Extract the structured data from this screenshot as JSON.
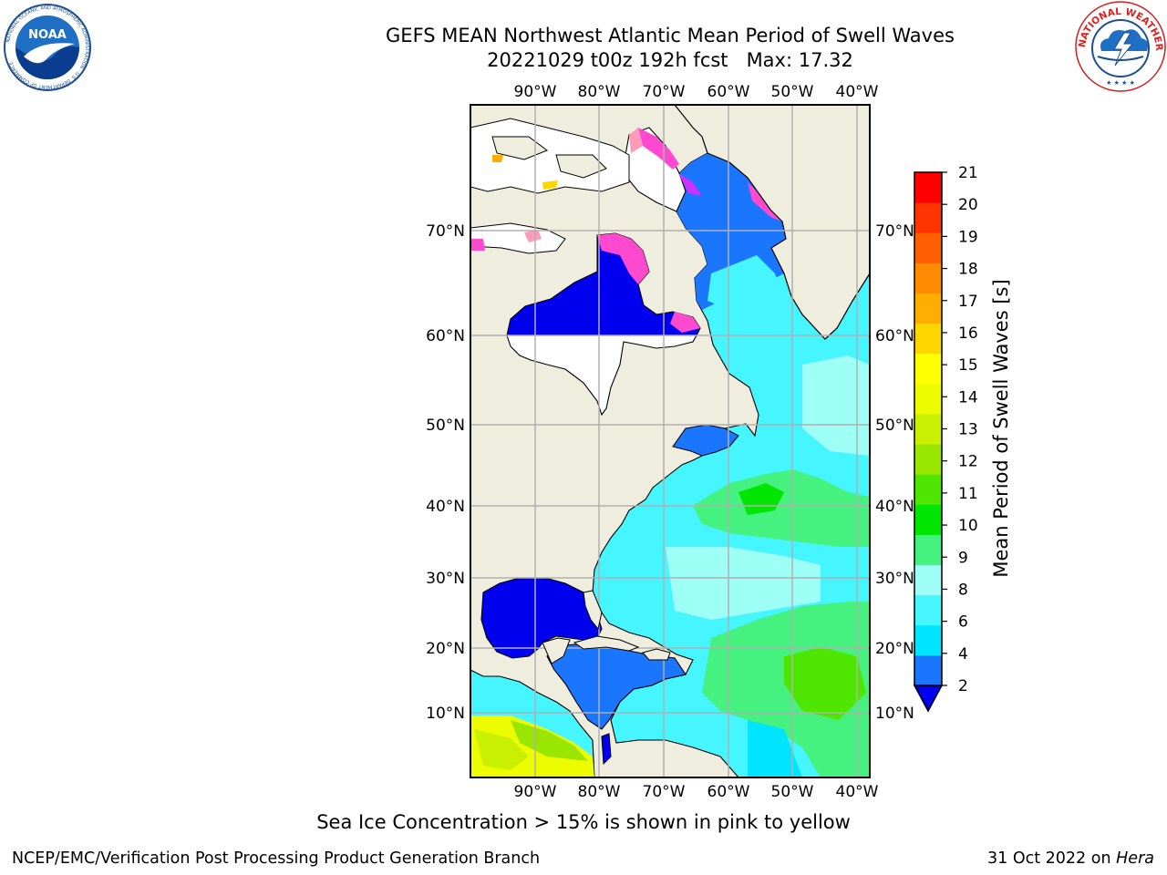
{
  "title": {
    "line1": "GEFS MEAN Northwest Atlantic Mean Period of Swell Waves",
    "line2": "20221029 t00z 192h fcst   Max: 17.32"
  },
  "logos": {
    "left": {
      "icon": "noaa-logo",
      "text": "NOAA",
      "ring_text": "NATIONAL OCEANIC AND ATMOSPHERIC ADMINISTRATION · U.S. DEPARTMENT OF COMMERCE"
    },
    "right": {
      "icon": "nws-logo",
      "ring_text": "NATIONAL WEATHER SERVICE"
    }
  },
  "map": {
    "projection": "mercator",
    "lon_range": [
      -100,
      -38
    ],
    "lat_range": [
      2,
      80
    ],
    "lon_ticks": [
      "90°W",
      "80°W",
      "70°W",
      "60°W",
      "50°W",
      "40°W"
    ],
    "lat_ticks": [
      "70°N",
      "60°N",
      "50°N",
      "40°N",
      "30°N",
      "20°N",
      "10°N"
    ],
    "grid": true,
    "colors": {
      "land": "#efedde",
      "ice_free_background": "#ffffff",
      "grid": "#b0b0b0",
      "coast": "#000000"
    }
  },
  "colorbar": {
    "label": "Mean Period of Swell Waves [s]",
    "ticks": [
      "2",
      "4",
      "6",
      "8",
      "9",
      "10",
      "11",
      "12",
      "13",
      "14",
      "15",
      "16",
      "17",
      "18",
      "19",
      "20",
      "21"
    ],
    "colors": [
      "#1a75ff",
      "#00e5ff",
      "#45f5ff",
      "#9dfff5",
      "#45f27f",
      "#00e600",
      "#4ee600",
      "#99e600",
      "#c8f000",
      "#eefc00",
      "#ffff00",
      "#ffd700",
      "#ffae00",
      "#ff8c00",
      "#ff5f00",
      "#ff3500",
      "#ff0000"
    ],
    "under_color": "#0000ee",
    "extend": "min"
  },
  "note": "Sea Ice Concentration > 15% is shown in pink to yellow",
  "footer": {
    "credit": "NCEP/EMC/Verification Post Processing Product Generation Branch",
    "date": "31 Oct 2022 on",
    "host": "Hera"
  }
}
